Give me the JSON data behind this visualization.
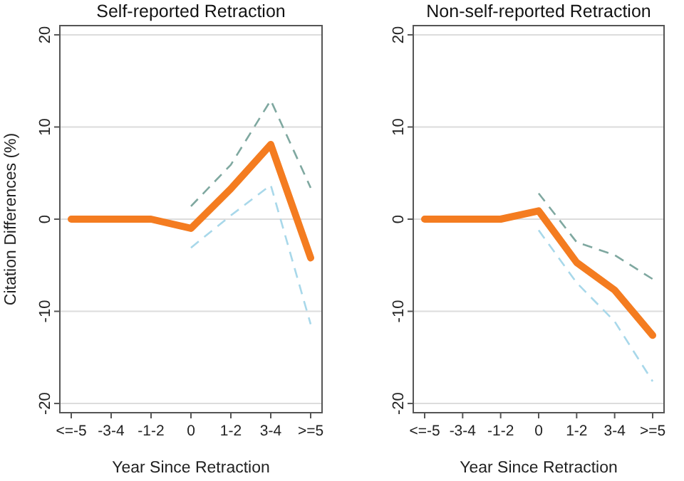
{
  "chart_data": [
    {
      "type": "line",
      "title": "Self-reported Retraction",
      "xlabel": "Year Since Retraction",
      "ylabel": "Citation Differences (%)",
      "categories": [
        "<=-5",
        "-3-4",
        "-1-2",
        "0",
        "1-2",
        "3-4",
        ">=5"
      ],
      "ylim": [
        -21,
        21
      ],
      "yticks": [
        -20,
        -10,
        0,
        10,
        20
      ],
      "grid": "y",
      "series": [
        {
          "color": "#f47c20",
          "line_style": "solid",
          "values": [
            0,
            0,
            0,
            -1,
            3.3,
            8.1,
            -4.2
          ]
        },
        {
          "color": "#7fa8a0",
          "line_style": "dashed",
          "values": [
            null,
            null,
            null,
            1.4,
            5.9,
            12.9,
            3.4
          ]
        },
        {
          "color": "#a8d8ea",
          "line_style": "dashed",
          "values": [
            null,
            null,
            null,
            -3.1,
            0.4,
            3.7,
            -11.4
          ]
        }
      ]
    },
    {
      "type": "line",
      "title": "Non-self-reported Retraction",
      "xlabel": "Year Since Retraction",
      "categories": [
        "<=-5",
        "-3-4",
        "-1-2",
        "0",
        "1-2",
        "3-4",
        ">=5"
      ],
      "ylim": [
        -21,
        21
      ],
      "yticks": [
        -20,
        -10,
        0,
        10,
        20
      ],
      "grid": "y",
      "series": [
        {
          "color": "#f47c20",
          "line_style": "solid",
          "values": [
            0,
            0,
            0,
            0.9,
            -4.7,
            -7.7,
            -12.6
          ]
        },
        {
          "color": "#7fa8a0",
          "line_style": "dashed",
          "values": [
            null,
            null,
            null,
            2.8,
            -2.5,
            -3.9,
            -6.5
          ]
        },
        {
          "color": "#a8d8ea",
          "line_style": "dashed",
          "values": [
            null,
            null,
            null,
            -1.2,
            -6.9,
            -11.1,
            -17.6
          ]
        }
      ]
    }
  ]
}
